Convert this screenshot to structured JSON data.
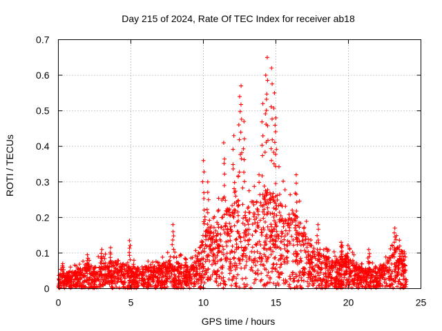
{
  "chart_data": {
    "type": "scatter",
    "title": "Day 215 of 2024, Rate Of TEC Index for receiver ab18",
    "xlabel": "GPS time / hours",
    "ylabel": "ROTI / TECUs",
    "xlim": [
      0,
      25
    ],
    "ylim": [
      0,
      0.7
    ],
    "xticks": [
      "0",
      "5",
      "10",
      "15",
      "20",
      "25"
    ],
    "yticks": [
      "0",
      "0.1",
      "0.2",
      "0.3",
      "0.4",
      "0.5",
      "0.6",
      "0.7"
    ],
    "grid": true,
    "marker": "+",
    "color": "#ff0000",
    "series": [
      {
        "name": "ROTI",
        "envelope_hours": [
          0,
          0.5,
          1,
          1.5,
          2,
          2.5,
          3,
          3.5,
          4,
          4.5,
          5,
          5.5,
          6,
          6.5,
          7,
          7.5,
          8,
          8.5,
          9,
          9.5,
          10,
          10.5,
          11,
          11.5,
          12,
          12.5,
          13,
          13.5,
          14,
          14.5,
          15,
          15.5,
          16,
          16.5,
          17,
          17.5,
          18,
          18.5,
          19,
          19.5,
          20,
          20.5,
          21,
          21.5,
          22,
          22.5,
          23,
          23.5,
          24
        ],
        "envelope_typical": [
          0.04,
          0.045,
          0.05,
          0.055,
          0.07,
          0.065,
          0.07,
          0.075,
          0.075,
          0.07,
          0.065,
          0.06,
          0.065,
          0.06,
          0.07,
          0.075,
          0.08,
          0.07,
          0.065,
          0.09,
          0.16,
          0.18,
          0.2,
          0.22,
          0.24,
          0.25,
          0.24,
          0.25,
          0.27,
          0.28,
          0.27,
          0.24,
          0.22,
          0.2,
          0.17,
          0.12,
          0.1,
          0.09,
          0.08,
          0.09,
          0.1,
          0.07,
          0.06,
          0.06,
          0.06,
          0.07,
          0.1,
          0.13,
          0.06
        ],
        "peaks": [
          {
            "x": 0.3,
            "y": 0.07
          },
          {
            "x": 2.0,
            "y": 0.095
          },
          {
            "x": 3.0,
            "y": 0.11
          },
          {
            "x": 3.6,
            "y": 0.115
          },
          {
            "x": 4.9,
            "y": 0.135
          },
          {
            "x": 7.9,
            "y": 0.18
          },
          {
            "x": 10.0,
            "y": 0.36
          },
          {
            "x": 10.3,
            "y": 0.3
          },
          {
            "x": 11.4,
            "y": 0.41
          },
          {
            "x": 12.1,
            "y": 0.43
          },
          {
            "x": 12.5,
            "y": 0.54
          },
          {
            "x": 12.6,
            "y": 0.57
          },
          {
            "x": 12.8,
            "y": 0.47
          },
          {
            "x": 14.1,
            "y": 0.52
          },
          {
            "x": 14.3,
            "y": 0.6
          },
          {
            "x": 14.4,
            "y": 0.65
          },
          {
            "x": 14.7,
            "y": 0.62
          },
          {
            "x": 14.9,
            "y": 0.55
          },
          {
            "x": 15.0,
            "y": 0.48
          },
          {
            "x": 16.4,
            "y": 0.32
          },
          {
            "x": 17.9,
            "y": 0.18
          },
          {
            "x": 19.5,
            "y": 0.13
          },
          {
            "x": 21.4,
            "y": 0.11
          },
          {
            "x": 23.2,
            "y": 0.17
          },
          {
            "x": 23.5,
            "y": 0.11
          }
        ]
      }
    ]
  }
}
